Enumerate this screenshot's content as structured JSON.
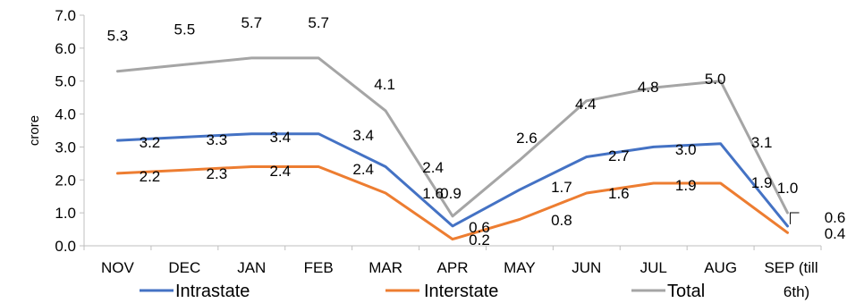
{
  "chart_data": {
    "type": "line",
    "ylabel": "crore",
    "ylim": [
      0,
      7
    ],
    "yticks": [
      "0.0",
      "1.0",
      "2.0",
      "3.0",
      "4.0",
      "5.0",
      "6.0",
      "7.0"
    ],
    "grid": false,
    "legend_position": "bottom",
    "categories": [
      "NOV",
      "DEC",
      "JAN",
      "FEB",
      "MAR",
      "APR",
      "MAY",
      "JUN",
      "JUL",
      "AUG",
      "SEP (till 6th)"
    ],
    "series": [
      {
        "name": "Intrastate",
        "color": "#4472C4",
        "values": [
          3.2,
          3.3,
          3.4,
          3.4,
          2.4,
          0.6,
          1.7,
          2.7,
          3.0,
          3.1,
          0.6
        ],
        "labels": [
          "3.2",
          "3.3",
          "3.4",
          "3.4",
          "2.4",
          "0.6",
          "1.7",
          "2.7",
          "3.0",
          "3.1",
          "0.6"
        ]
      },
      {
        "name": "Interstate",
        "color": "#ED7D31",
        "values": [
          2.2,
          2.3,
          2.4,
          2.4,
          1.6,
          0.2,
          0.8,
          1.6,
          1.9,
          1.9,
          0.4
        ],
        "labels": [
          "2.2",
          "2.3",
          "2.4",
          "2.4",
          "1.6",
          "0.2",
          "0.8",
          "1.6",
          "1.9",
          "1.9",
          "0.4"
        ]
      },
      {
        "name": "Total",
        "color": "#A5A5A5",
        "values": [
          5.3,
          5.5,
          5.7,
          5.7,
          4.1,
          0.9,
          2.6,
          4.4,
          4.8,
          5.0,
          1.0
        ],
        "labels": [
          "5.3",
          "5.5",
          "5.7",
          "5.7",
          "4.1",
          "0.9",
          "2.6",
          "4.4",
          "4.8",
          "5.0",
          "1.0"
        ]
      }
    ]
  }
}
